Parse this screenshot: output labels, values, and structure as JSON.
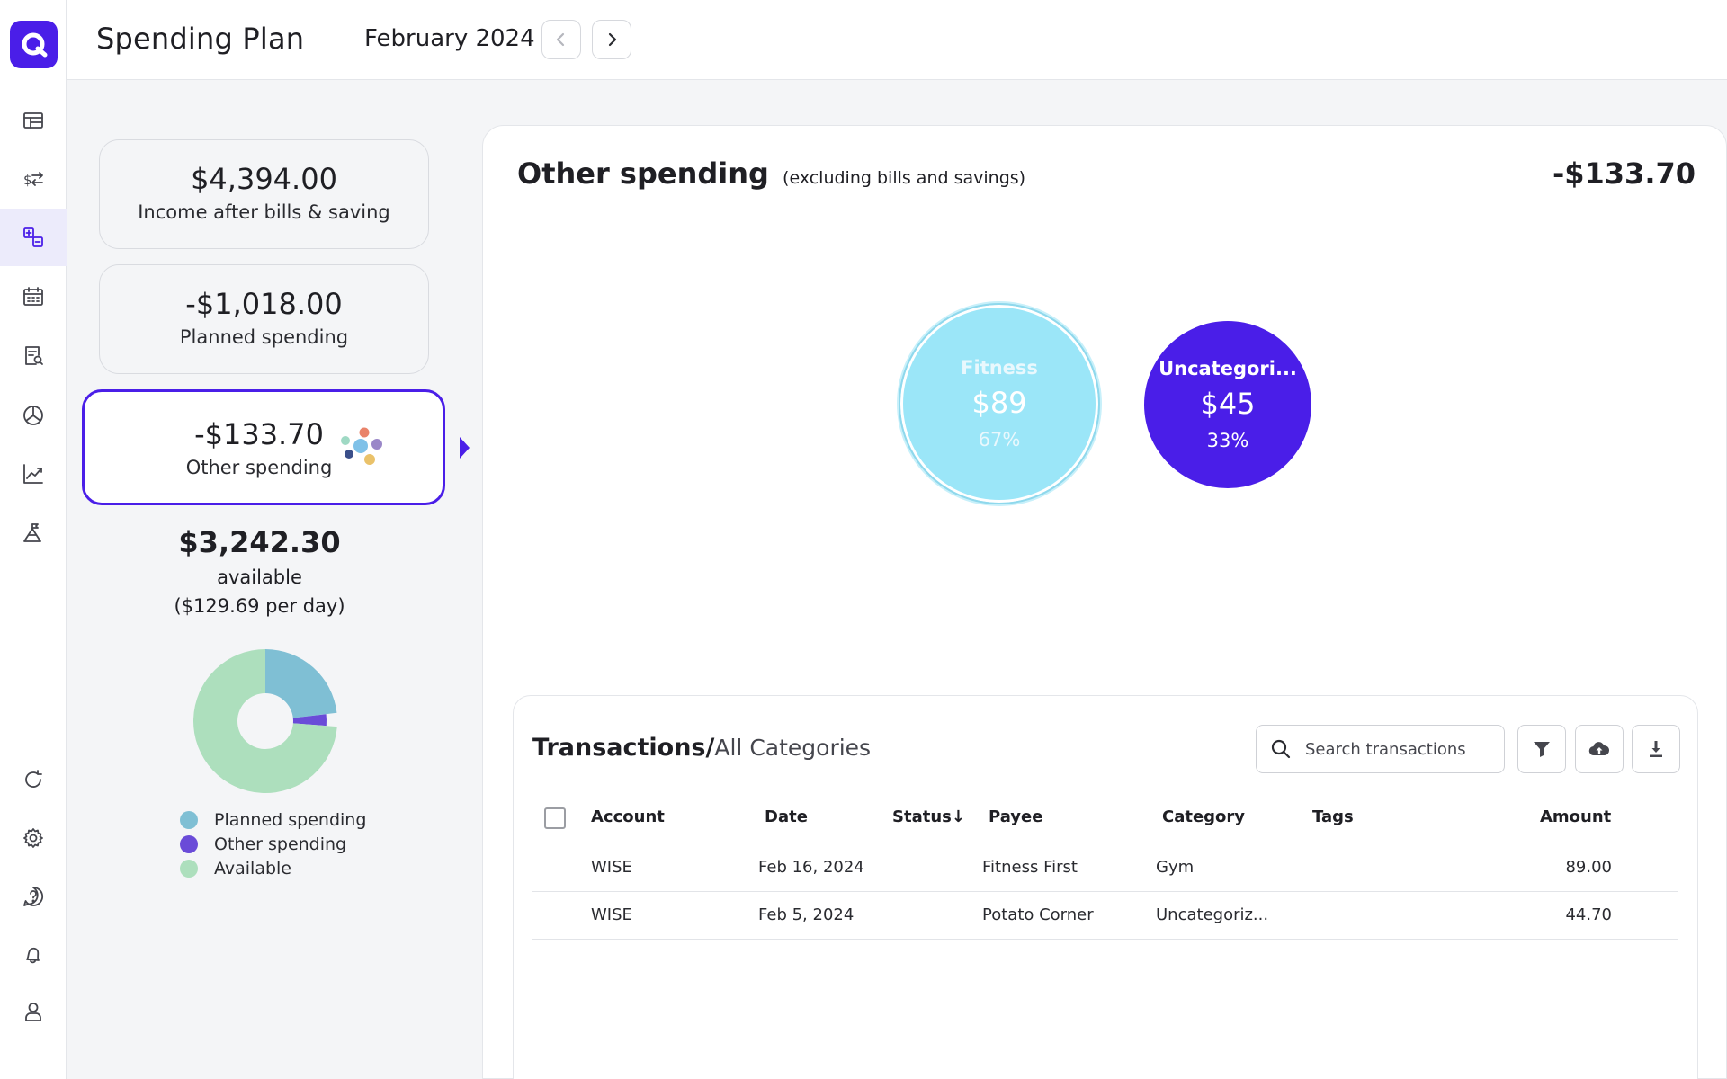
{
  "header": {
    "title": "Spending Plan",
    "month": "February 2024"
  },
  "summary": {
    "income": {
      "amount": "$4,394.00",
      "label": "Income after bills & saving"
    },
    "planned": {
      "amount": "-$1,018.00",
      "label": "Planned spending"
    },
    "other": {
      "amount": "-$133.70",
      "label": "Other spending"
    },
    "available": {
      "amount": "$3,242.30",
      "label": "available",
      "per_day": "($129.69 per day)"
    }
  },
  "donut": {
    "segments": [
      {
        "name": "Planned spending",
        "value": 1018.0,
        "color": "#7fbfd4"
      },
      {
        "name": "Other spending",
        "value": 133.7,
        "color": "#6a4bd8"
      },
      {
        "name": "Available",
        "value": 3242.3,
        "color": "#addfbd"
      }
    ],
    "legend": [
      "Planned spending",
      "Other spending",
      "Available"
    ]
  },
  "main": {
    "title": "Other spending",
    "subtitle": "(excluding bills and savings)",
    "total": "-$133.70",
    "bubbles": [
      {
        "name": "Fitness",
        "amount": "$89",
        "percent": "67%",
        "color": "#9be6f8"
      },
      {
        "name": "Uncategori...",
        "amount": "$45",
        "percent": "33%",
        "color": "#4a1ee8"
      }
    ]
  },
  "transactions": {
    "title": "Transactions/",
    "scope": "All Categories",
    "search_placeholder": "Search transactions",
    "columns": {
      "account": "Account",
      "date": "Date",
      "status": "Status",
      "payee": "Payee",
      "category": "Category",
      "tags": "Tags",
      "amount": "Amount"
    },
    "status_sort_glyph": "↓",
    "rows": [
      {
        "account": "WISE",
        "date": "Feb 16, 2024",
        "status": "",
        "payee": "Fitness First",
        "category": "Gym",
        "tags": "",
        "amount": "89.00"
      },
      {
        "account": "WISE",
        "date": "Feb 5, 2024",
        "status": "",
        "payee": "Potato Corner",
        "category": "Uncategoriz...",
        "tags": "",
        "amount": "44.70"
      }
    ]
  },
  "colors": {
    "accent": "#4a1ee8",
    "dots": [
      "#9fd9c4",
      "#e9836a",
      "#7fc1e8",
      "#9a87c8",
      "#3b4f8a",
      "#eac26a"
    ]
  }
}
